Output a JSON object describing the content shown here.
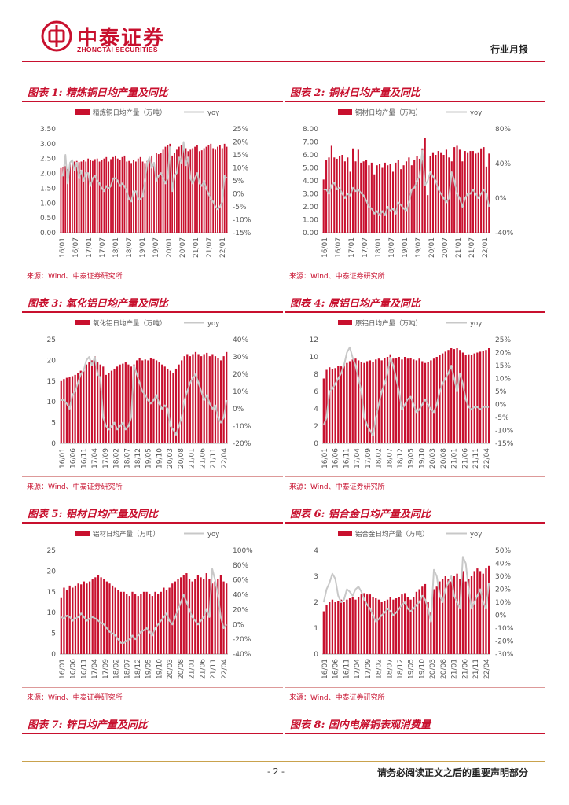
{
  "header": {
    "logo_cn": "中泰证券",
    "logo_en": "ZHONGTAI SECURITIES",
    "report_type": "行业月报"
  },
  "footer": {
    "page_number": "- 2 -",
    "disclaimer": "请务必阅读正文之后的重要声明部分"
  },
  "colors": {
    "bar": "#c8102e",
    "line": "#c8c8c8",
    "accent": "#c8102e"
  },
  "icons": {
    "logo": "zhongtai-logo-icon"
  },
  "panels": [
    {
      "title": "图表 1:  精炼铜日均产量及同比",
      "source": "来源：Wind、中泰证券研究所"
    },
    {
      "title": "图表 2:  铜材日均产量及同比",
      "source": "来源：Wind、中泰证券研究所"
    },
    {
      "title": "图表 3:  氧化铝日均产量及同比",
      "source": "来源：Wind、中泰证券研究所"
    },
    {
      "title": "图表 4:  原铝日均产量及同比",
      "source": "来源：Wind、中泰证券研究所"
    },
    {
      "title": "图表 5:  铝材日均产量及同比",
      "source": "来源：Wind、中泰证券研究所"
    },
    {
      "title": "图表 6:  铝合金日均产量及同比",
      "source": "来源：Wind、中泰证券研究所"
    },
    {
      "title": "图表 7:  锌日均产量及同比",
      "source": ""
    },
    {
      "title": "图表 8:  国内电解铜表观消费量",
      "source": ""
    }
  ],
  "chart_data": [
    {
      "type": "bar",
      "bar_name": "精炼铜日均产量（万吨）",
      "line_name": "yoy",
      "ylim_left": [
        0,
        3.5
      ],
      "yticks_left": [
        "0.00",
        "0.50",
        "1.00",
        "1.50",
        "2.00",
        "2.50",
        "3.00",
        "3.50"
      ],
      "ylim_right": [
        -15,
        25
      ],
      "yticks_right": [
        "-15%",
        "-10%",
        "-5%",
        "0%",
        "5%",
        "10%",
        "15%",
        "20%",
        "25%"
      ],
      "xticks": [
        "16/01",
        "16/07",
        "17/01",
        "17/07",
        "18/01",
        "18/07",
        "19/01",
        "19/07",
        "20/01",
        "20/07",
        "21/01",
        "21/07",
        "22/01"
      ],
      "bars": [
        2.18,
        2.2,
        2.25,
        2.15,
        2.3,
        2.35,
        2.4,
        2.42,
        2.38,
        2.4,
        2.45,
        2.4,
        2.5,
        2.45,
        2.42,
        2.48,
        2.5,
        2.4,
        2.45,
        2.5,
        2.55,
        2.4,
        2.48,
        2.55,
        2.6,
        2.5,
        2.45,
        2.55,
        2.6,
        2.4,
        2.42,
        2.35,
        2.45,
        2.4,
        2.5,
        2.55,
        2.4,
        2.35,
        2.42,
        2.5,
        2.6,
        2.3,
        2.7,
        2.65,
        2.7,
        2.8,
        2.9,
        2.95,
        3.0,
        2.6,
        2.7,
        2.8,
        2.9,
        2.95,
        3.0,
        2.85,
        2.75,
        2.8,
        2.85,
        2.9,
        2.95,
        2.75,
        2.78,
        2.85,
        2.9,
        2.95,
        3.0,
        2.85,
        2.8,
        2.9,
        2.95,
        2.85,
        3.0,
        2.9
      ],
      "line": [
        7,
        7,
        15,
        4,
        12,
        13,
        9,
        12,
        6,
        9,
        5,
        8,
        8,
        3,
        6,
        7,
        5,
        4,
        2,
        1,
        3,
        2,
        3,
        6,
        6,
        5,
        3,
        4,
        3,
        1,
        -2,
        -3,
        1,
        1,
        -2,
        -2,
        -1,
        5,
        12,
        14,
        10,
        12,
        5,
        7,
        8,
        6,
        4,
        6,
        18,
        1,
        7,
        8,
        14,
        12,
        20,
        11,
        14,
        6,
        4,
        6,
        8,
        4,
        3,
        5,
        2,
        0,
        -2,
        -3,
        -5,
        -6,
        -5,
        -3,
        7,
        6
      ]
    },
    {
      "type": "bar",
      "bar_name": "铜材日均产量（万吨）",
      "line_name": "yoy",
      "ylim_left": [
        0,
        8
      ],
      "yticks_left": [
        "0.00",
        "1.00",
        "2.00",
        "3.00",
        "4.00",
        "5.00",
        "6.00",
        "7.00",
        "8.00"
      ],
      "ylim_right": [
        -40,
        80
      ],
      "yticks_right": [
        "-40%",
        "0%",
        "40%",
        "80%"
      ],
      "xticks": [
        "16/01",
        "16/07",
        "17/01",
        "17/07",
        "18/01",
        "18/07",
        "19/01",
        "19/07",
        "20/01",
        "20/07",
        "21/01",
        "21/07",
        "22/01"
      ],
      "bars": [
        4.1,
        5.6,
        5.8,
        6.7,
        5.8,
        5.7,
        5.9,
        6.0,
        5.5,
        5.8,
        4.7,
        6.5,
        5.5,
        6.4,
        5.4,
        5.5,
        5.6,
        5.2,
        5.4,
        4.5,
        5.2,
        5.3,
        5.0,
        5.4,
        5.2,
        5.3,
        4.7,
        5.4,
        5.6,
        4.9,
        5.2,
        5.5,
        5.8,
        5.2,
        5.6,
        5.9,
        5.7,
        6.5,
        7.3,
        2.9,
        5.9,
        6.2,
        6.0,
        6.3,
        6.2,
        6.0,
        6.4,
        5.8,
        5.5,
        6.6,
        6.7,
        6.4,
        5.5,
        6.3,
        6.2,
        6.3,
        6.3,
        6.1,
        6.2,
        6.5,
        6.6,
        5.1,
        6.1
      ],
      "line": [
        10,
        10,
        5,
        15,
        18,
        10,
        12,
        5,
        0,
        5,
        3,
        12,
        8,
        10,
        6,
        3,
        -3,
        -10,
        -12,
        -18,
        -15,
        -20,
        -15,
        -20,
        -10,
        -15,
        -12,
        -18,
        -5,
        -8,
        -12,
        -15,
        -5,
        10,
        12,
        20,
        25,
        55,
        15,
        20,
        30,
        25,
        20,
        10,
        5,
        0,
        -5,
        0,
        30,
        20,
        5,
        0,
        -10,
        0,
        5,
        5,
        10,
        5,
        0,
        5,
        10,
        5,
        -10
      ]
    },
    {
      "type": "bar",
      "bar_name": "氧化铝日均产量（万吨）",
      "line_name": "yoy",
      "ylim_left": [
        0,
        25
      ],
      "yticks_left": [
        "0",
        "5",
        "10",
        "15",
        "20",
        "25"
      ],
      "ylim_right": [
        -20,
        40
      ],
      "yticks_right": [
        "-20%",
        "-10%",
        "0%",
        "10%",
        "20%",
        "30%",
        "40%"
      ],
      "xticks": [
        "16/01",
        "16/06",
        "16/11",
        "17/04",
        "17/09",
        "18/02",
        "18/07",
        "18/12",
        "19/05",
        "19/10",
        "20/03",
        "20/08",
        "21/01",
        "21/06",
        "21/11",
        "22/04"
      ],
      "bars": [
        15,
        15.5,
        15.8,
        16,
        16.2,
        16.5,
        17,
        17.5,
        18,
        19,
        19.5,
        20,
        21,
        19.5,
        19,
        18.5,
        16.5,
        17,
        17.5,
        18,
        18.5,
        19,
        19.2,
        19.5,
        19,
        18.5,
        19,
        20,
        20.5,
        20,
        20.2,
        20,
        20.5,
        20.3,
        20,
        19.5,
        19,
        18.5,
        18,
        17.5,
        17,
        18,
        19,
        20,
        21,
        21.5,
        21,
        21.5,
        22,
        21.5,
        21,
        21.5,
        21.8,
        21,
        21.5,
        21,
        20.5,
        20,
        21,
        22
      ],
      "line": [
        5,
        5,
        3,
        0,
        8,
        10,
        15,
        20,
        22,
        28,
        30,
        25,
        30,
        20,
        18,
        -5,
        -10,
        -12,
        -10,
        -8,
        -12,
        -10,
        -8,
        -12,
        -10,
        -5,
        25,
        20,
        15,
        10,
        8,
        5,
        3,
        5,
        8,
        3,
        0,
        2,
        0,
        -10,
        -12,
        -15,
        -10,
        -5,
        5,
        10,
        15,
        18,
        20,
        15,
        10,
        5,
        8,
        3,
        0,
        2,
        -5,
        -8,
        -5,
        5
      ]
    },
    {
      "type": "bar",
      "bar_name": "原铝日均产量（万吨）",
      "line_name": "yoy",
      "ylim_left": [
        0,
        12
      ],
      "yticks_left": [
        "0",
        "2",
        "4",
        "6",
        "8",
        "10",
        "12"
      ],
      "ylim_right": [
        -15,
        25
      ],
      "yticks_right": [
        "-15%",
        "-10%",
        "-5%",
        "0%",
        "5%",
        "10%",
        "15%",
        "20%",
        "25%"
      ],
      "xticks": [
        "16/01",
        "16/06",
        "16/11",
        "17/04",
        "17/09",
        "18/02",
        "18/07",
        "18/12",
        "19/05",
        "19/10",
        "20/03",
        "20/08",
        "21/01",
        "21/06",
        "21/11",
        "22/04"
      ],
      "bars": [
        7.5,
        8.5,
        8.8,
        8.6,
        8.7,
        9.0,
        8.9,
        9.2,
        9.3,
        9.5,
        9.7,
        9.8,
        9.6,
        9.4,
        9.3,
        9.5,
        9.6,
        9.4,
        9.7,
        9.8,
        9.6,
        9.9,
        10,
        10.3,
        9.8,
        9.9,
        10,
        9.7,
        10,
        9.8,
        9.9,
        9.7,
        9.6,
        9.8,
        9.5,
        9.3,
        9.4,
        9.6,
        9.8,
        10,
        10.2,
        10.4,
        10.6,
        10.8,
        11,
        10.9,
        11,
        10.8,
        10.5,
        10.2,
        10.3,
        10.2,
        10.4,
        10.5,
        10.6,
        10.7,
        10.8,
        11
      ],
      "line": [
        -8,
        -5,
        5,
        6,
        8,
        10,
        12,
        15,
        20,
        22,
        18,
        15,
        10,
        5,
        -5,
        -8,
        -10,
        -12,
        -5,
        0,
        5,
        8,
        12,
        18,
        15,
        10,
        5,
        -2,
        0,
        2,
        3,
        0,
        -3,
        -2,
        0,
        2,
        0,
        -2,
        -3,
        0,
        5,
        8,
        10,
        12,
        15,
        10,
        5,
        12,
        8,
        2,
        -1,
        -2,
        -1,
        -1,
        -2,
        -1,
        -1,
        -1
      ]
    },
    {
      "type": "bar",
      "bar_name": "铝材日均产量（万吨）",
      "line_name": "yoy",
      "ylim_left": [
        0,
        25
      ],
      "yticks_left": [
        "0",
        "5",
        "10",
        "15",
        "20",
        "25"
      ],
      "ylim_right": [
        -40,
        100
      ],
      "yticks_right": [
        "-40%",
        "-20%",
        "0%",
        "20%",
        "40%",
        "60%",
        "80%",
        "100%"
      ],
      "xticks": [
        "16/01",
        "16/06",
        "16/11",
        "17/04",
        "17/09",
        "18/02",
        "18/07",
        "18/12",
        "19/05",
        "19/10",
        "20/03",
        "20/08",
        "21/01",
        "21/06",
        "21/11",
        "22/04"
      ],
      "bars": [
        13.5,
        16,
        15.5,
        16.5,
        16,
        16.5,
        17,
        16.8,
        17.5,
        17,
        17.5,
        18,
        18.5,
        19,
        18.5,
        18,
        17.5,
        17,
        16.5,
        16,
        15.5,
        15,
        15,
        14.5,
        14,
        15,
        14.5,
        14,
        14.5,
        15,
        15,
        14.5,
        14,
        15,
        14.5,
        15,
        16,
        15.5,
        16,
        17,
        17.5,
        18,
        18.5,
        19,
        19.5,
        18,
        17.5,
        18,
        19,
        18.5,
        18,
        19.5,
        18,
        17,
        17.5,
        18,
        19,
        17.5,
        17
      ],
      "line": [
        10,
        8,
        12,
        10,
        5,
        8,
        10,
        15,
        10,
        5,
        8,
        10,
        8,
        5,
        2,
        0,
        -5,
        -10,
        -12,
        -15,
        -20,
        -25,
        -25,
        -22,
        -20,
        -15,
        -20,
        -15,
        -10,
        -8,
        -5,
        -10,
        -15,
        -5,
        0,
        5,
        10,
        15,
        5,
        0,
        10,
        20,
        30,
        40,
        30,
        20,
        10,
        5,
        0,
        5,
        10,
        20,
        10,
        75,
        60,
        40,
        10,
        -5,
        0
      ]
    },
    {
      "type": "bar",
      "bar_name": "铝合金日均产量（万吨）",
      "line_name": "yoy",
      "ylim_left": [
        0,
        4
      ],
      "yticks_left": [
        "0",
        "1",
        "2",
        "3",
        "4"
      ],
      "ylim_right": [
        -30,
        50
      ],
      "yticks_right": [
        "-30%",
        "-20%",
        "-10%",
        "0%",
        "10%",
        "20%",
        "30%",
        "40%",
        "50%"
      ],
      "xticks": [
        "16/01",
        "16/06",
        "16/11",
        "17/04",
        "17/09",
        "18/02",
        "18/07",
        "18/12",
        "19/05",
        "19/10",
        "20/03",
        "20/08",
        "21/01",
        "21/06",
        "21/11",
        "22/04"
      ],
      "bars": [
        1.65,
        1.9,
        2.0,
        2.1,
        2.0,
        2.05,
        2.1,
        2.0,
        2.1,
        2.15,
        2.2,
        2.1,
        2.2,
        2.3,
        2.35,
        2.3,
        2.3,
        2.2,
        2.15,
        2.1,
        2.0,
        2.05,
        2.1,
        2.2,
        2.1,
        2.15,
        2.2,
        2.3,
        2.35,
        2.2,
        2.1,
        2.2,
        2.4,
        2.5,
        2.6,
        2.7,
        2.0,
        1.6,
        2.5,
        2.6,
        2.8,
        2.9,
        3.0,
        2.9,
        2.8,
        3.0,
        3.1,
        2.9,
        3.2,
        2.8,
        2.9,
        3.0,
        3.2,
        3.3,
        3.2,
        3.1,
        3.3,
        3.4
      ],
      "line": [
        10,
        20,
        25,
        32,
        28,
        15,
        10,
        12,
        20,
        18,
        15,
        20,
        22,
        18,
        12,
        8,
        5,
        0,
        -5,
        -3,
        0,
        2,
        5,
        3,
        0,
        2,
        5,
        8,
        10,
        5,
        3,
        5,
        8,
        10,
        15,
        12,
        5,
        -5,
        35,
        30,
        15,
        10,
        20,
        25,
        30,
        15,
        10,
        5,
        45,
        40,
        20,
        5,
        10,
        15,
        20,
        10,
        5,
        25
      ]
    }
  ]
}
